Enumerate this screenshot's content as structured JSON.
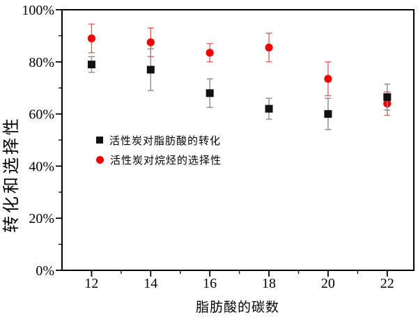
{
  "chart_data": {
    "type": "scatter",
    "title": "",
    "xlabel": "脂肪酸的碳数",
    "ylabel": "转化和选择性",
    "x": [
      12,
      14,
      16,
      18,
      20,
      22
    ],
    "series": [
      {
        "name": "活性炭对脂肪酸的转化",
        "marker": "square",
        "color": "#111111",
        "errorbar_color": "#8a8a8a",
        "values": [
          79,
          77,
          68,
          62,
          60,
          66.5
        ],
        "errors": [
          3,
          8,
          5.5,
          4,
          6,
          5
        ]
      },
      {
        "name": "活性炭对烷烃的选择性",
        "marker": "circle",
        "color": "#ee0000",
        "errorbar_color": "#e06060",
        "values": [
          89,
          87.5,
          83.5,
          85.5,
          73.5,
          64
        ],
        "errors": [
          5.5,
          5.5,
          3.5,
          5.5,
          6.5,
          4.5
        ]
      }
    ],
    "xlim": [
      11,
      22.9
    ],
    "ylim": [
      0,
      100
    ],
    "x_major_ticks": [
      12,
      14,
      16,
      18,
      20,
      22
    ],
    "x_minor_ticks": [
      13,
      15,
      17,
      19,
      21
    ],
    "y_major_ticks": [
      0,
      20,
      40,
      60,
      80,
      100
    ],
    "y_minor_ticks": [
      10,
      30,
      50,
      70,
      90
    ],
    "y_tick_suffix": "%",
    "grid": false,
    "legend_position": "inside-left-middle",
    "axis_color": "#000000",
    "background_color": "#ffffff"
  }
}
